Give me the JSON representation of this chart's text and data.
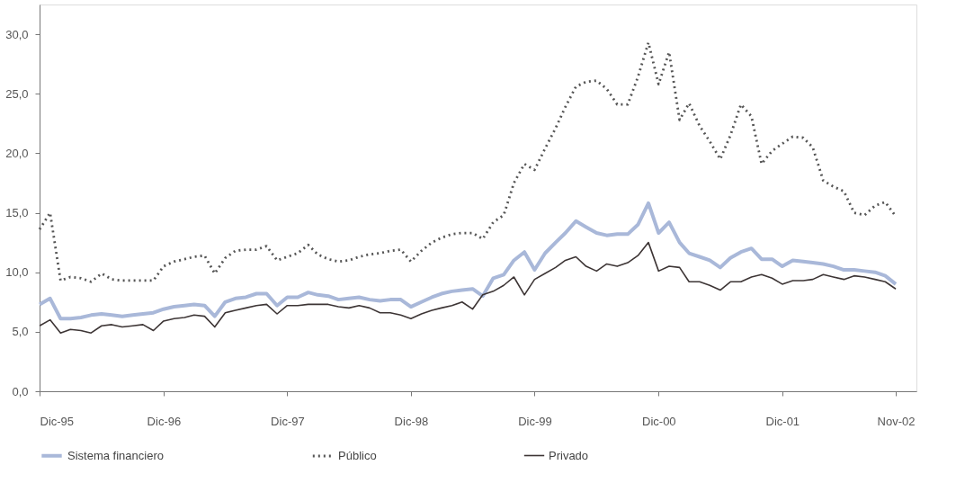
{
  "chart_data": {
    "type": "line",
    "x": [
      "1995-12",
      "1996-01",
      "1996-02",
      "1996-03",
      "1996-04",
      "1996-05",
      "1996-06",
      "1996-07",
      "1996-08",
      "1996-09",
      "1996-10",
      "1996-11",
      "1996-12",
      "1997-01",
      "1997-02",
      "1997-03",
      "1997-04",
      "1997-05",
      "1997-06",
      "1997-07",
      "1997-08",
      "1997-09",
      "1997-10",
      "1997-11",
      "1997-12",
      "1998-01",
      "1998-02",
      "1998-03",
      "1998-04",
      "1998-05",
      "1998-06",
      "1998-07",
      "1998-08",
      "1998-09",
      "1998-10",
      "1998-11",
      "1998-12",
      "1999-01",
      "1999-02",
      "1999-03",
      "1999-04",
      "1999-05",
      "1999-06",
      "1999-07",
      "1999-08",
      "1999-09",
      "1999-10",
      "1999-11",
      "1999-12",
      "2000-01",
      "2000-02",
      "2000-03",
      "2000-04",
      "2000-05",
      "2000-06",
      "2000-07",
      "2000-08",
      "2000-09",
      "2000-10",
      "2000-11",
      "2000-12",
      "2001-01",
      "2001-02",
      "2001-03",
      "2001-04",
      "2001-05",
      "2001-06",
      "2001-07",
      "2001-08",
      "2001-09",
      "2001-10",
      "2001-11",
      "2001-12",
      "2002-01",
      "2002-02",
      "2002-03",
      "2002-04",
      "2002-05",
      "2002-06",
      "2002-07",
      "2002-08",
      "2002-09",
      "2002-10",
      "2002-11"
    ],
    "series": [
      {
        "name": "Sistema financiero",
        "color": "#a9b8d9",
        "line_style": "solid",
        "values": [
          7.3,
          7.8,
          6.1,
          6.1,
          6.2,
          6.4,
          6.5,
          6.4,
          6.3,
          6.4,
          6.5,
          6.6,
          6.9,
          7.1,
          7.2,
          7.3,
          7.2,
          6.3,
          7.5,
          7.8,
          7.9,
          8.2,
          8.2,
          7.2,
          7.9,
          7.9,
          8.3,
          8.1,
          8.0,
          7.7,
          7.8,
          7.9,
          7.7,
          7.6,
          7.7,
          7.7,
          7.1,
          7.5,
          7.9,
          8.2,
          8.4,
          8.5,
          8.6,
          8.0,
          9.5,
          9.8,
          11.0,
          11.7,
          10.2,
          11.6,
          12.5,
          13.3,
          14.3,
          13.8,
          13.3,
          13.1,
          13.2,
          13.2,
          14.0,
          15.8,
          13.3,
          14.2,
          12.5,
          11.6,
          11.3,
          11.0,
          10.4,
          11.2,
          11.7,
          12.0,
          11.1,
          11.1,
          10.5,
          11.0,
          10.9,
          10.8,
          10.7,
          10.5,
          10.2,
          10.2,
          10.1,
          10.0,
          9.7,
          9.0
        ]
      },
      {
        "name": "Público",
        "color": "#555555",
        "line_style": "dotted",
        "values": [
          13.6,
          15.0,
          9.3,
          9.6,
          9.5,
          9.2,
          9.9,
          9.4,
          9.3,
          9.3,
          9.3,
          9.3,
          10.5,
          10.9,
          11.1,
          11.3,
          11.4,
          9.9,
          11.2,
          11.8,
          11.9,
          11.9,
          12.2,
          11.0,
          11.3,
          11.6,
          12.3,
          11.5,
          11.1,
          10.9,
          11.0,
          11.3,
          11.5,
          11.6,
          11.8,
          11.9,
          10.9,
          11.8,
          12.5,
          12.9,
          13.2,
          13.3,
          13.3,
          12.8,
          14.2,
          14.8,
          17.5,
          19.1,
          18.6,
          20.4,
          22.1,
          23.9,
          25.6,
          26.0,
          26.1,
          25.4,
          24.1,
          24.1,
          26.4,
          29.3,
          25.8,
          28.5,
          22.8,
          24.2,
          22.3,
          21.0,
          19.5,
          21.5,
          24.1,
          23.1,
          19.1,
          20.2,
          20.8,
          21.4,
          21.3,
          20.5,
          17.7,
          17.2,
          16.8,
          15.0,
          14.8,
          15.6,
          15.9,
          14.7
        ]
      },
      {
        "name": "Privado",
        "color": "#3d3535",
        "line_style": "solid",
        "values": [
          5.5,
          6.0,
          4.9,
          5.2,
          5.1,
          4.9,
          5.5,
          5.6,
          5.4,
          5.5,
          5.6,
          5.1,
          5.9,
          6.1,
          6.2,
          6.4,
          6.3,
          5.4,
          6.6,
          6.8,
          7.0,
          7.2,
          7.3,
          6.5,
          7.2,
          7.2,
          7.3,
          7.3,
          7.3,
          7.1,
          7.0,
          7.2,
          7.0,
          6.6,
          6.6,
          6.4,
          6.1,
          6.5,
          6.8,
          7.0,
          7.2,
          7.5,
          6.9,
          8.1,
          8.4,
          8.9,
          9.6,
          8.1,
          9.4,
          9.9,
          10.4,
          11.0,
          11.3,
          10.5,
          10.1,
          10.7,
          10.5,
          10.8,
          11.4,
          12.5,
          10.1,
          10.5,
          10.4,
          9.2,
          9.2,
          8.9,
          8.5,
          9.2,
          9.2,
          9.6,
          9.8,
          9.5,
          9.0,
          9.3,
          9.3,
          9.4,
          9.8,
          9.6,
          9.4,
          9.7,
          9.6,
          9.4,
          9.2,
          8.6
        ]
      }
    ],
    "xlim": [
      "1995-12",
      "2003-01"
    ],
    "xticks": [
      {
        "value": "1995-12",
        "label": "Dic-95"
      },
      {
        "value": "1996-12",
        "label": "Dic-96"
      },
      {
        "value": "1997-12",
        "label": "Dic-97"
      },
      {
        "value": "1998-12",
        "label": "Dic-98"
      },
      {
        "value": "1999-12",
        "label": "Dic-99"
      },
      {
        "value": "2000-12",
        "label": "Dic-00"
      },
      {
        "value": "2001-12",
        "label": "Dic-01"
      },
      {
        "value": "2002-11",
        "label": "Nov-02"
      }
    ],
    "ylim": [
      0,
      32.5
    ],
    "yticks": [
      {
        "value": 0,
        "label": "0,0"
      },
      {
        "value": 5,
        "label": "5,0"
      },
      {
        "value": 10,
        "label": "10,0"
      },
      {
        "value": 15,
        "label": "15,0"
      },
      {
        "value": 20,
        "label": "20,0"
      },
      {
        "value": 25,
        "label": "25,0"
      },
      {
        "value": 30,
        "label": "30,0"
      }
    ],
    "grid": false,
    "legend": "bottom"
  }
}
